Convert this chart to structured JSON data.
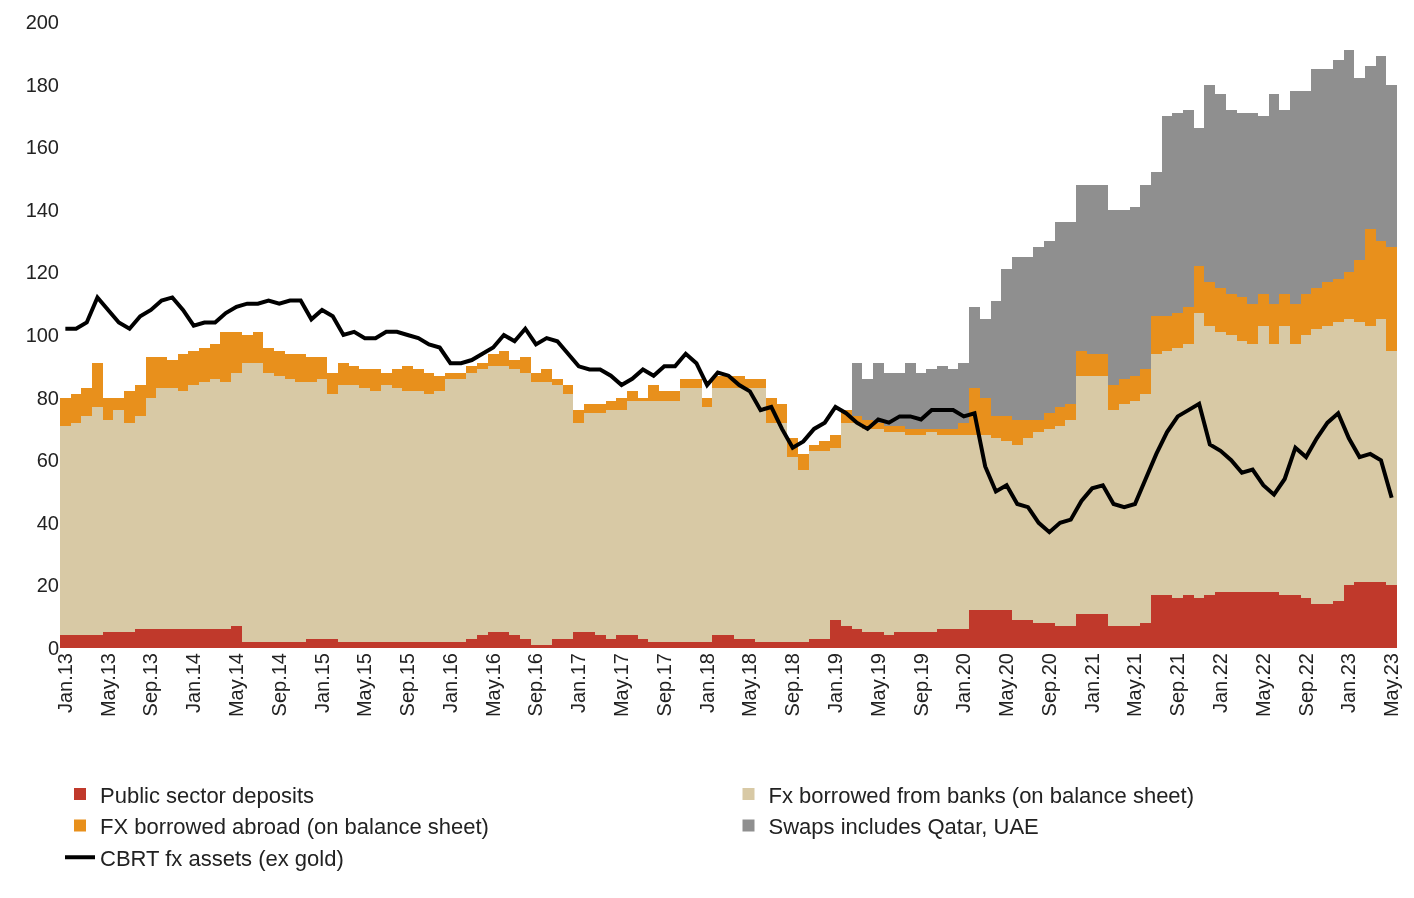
{
  "chart_data": {
    "type": "bar",
    "stacked": true,
    "grid": false,
    "legend": "bottom",
    "ylim": [
      0,
      200
    ],
    "yticks": [
      0,
      20,
      40,
      60,
      80,
      100,
      120,
      140,
      160,
      180,
      200
    ],
    "categories": [
      "Jan.13",
      null,
      null,
      null,
      "May.13",
      null,
      null,
      null,
      "Sep.13",
      null,
      null,
      null,
      "Jan.14",
      null,
      null,
      null,
      "May.14",
      null,
      null,
      null,
      "Sep.14",
      null,
      null,
      null,
      "Jan.15",
      null,
      null,
      null,
      "May.15",
      null,
      null,
      null,
      "Sep.15",
      null,
      null,
      null,
      "Jan.16",
      null,
      null,
      null,
      "May.16",
      null,
      null,
      null,
      "Sep.16",
      null,
      null,
      null,
      "Jan.17",
      null,
      null,
      null,
      "May.17",
      null,
      null,
      null,
      "Sep.17",
      null,
      null,
      null,
      "Jan.18",
      null,
      null,
      null,
      "May.18",
      null,
      null,
      null,
      "Sep.18",
      null,
      null,
      null,
      "Jan.19",
      null,
      null,
      null,
      "May.19",
      null,
      null,
      null,
      "Sep.19",
      null,
      null,
      null,
      "Jan.20",
      null,
      null,
      null,
      "May.20",
      null,
      null,
      null,
      "Sep.20",
      null,
      null,
      null,
      "Jan.21",
      null,
      null,
      null,
      "May.21",
      null,
      null,
      null,
      "Sep.21",
      null,
      null,
      null,
      "Jan.22",
      null,
      null,
      null,
      "May.22",
      null,
      null,
      null,
      "Sep.22",
      null,
      null,
      null,
      "Jan.23",
      null,
      null,
      null,
      "May.23"
    ],
    "series": [
      {
        "name": "Public sector deposits",
        "color": "#c0392b",
        "values": [
          4,
          4,
          4,
          4,
          5,
          5,
          5,
          6,
          6,
          6,
          6,
          6,
          6,
          6,
          6,
          6,
          7,
          2,
          2,
          2,
          2,
          2,
          2,
          3,
          3,
          3,
          2,
          2,
          2,
          2,
          2,
          2,
          2,
          2,
          2,
          2,
          2,
          2,
          3,
          4,
          5,
          5,
          4,
          3,
          1,
          1,
          3,
          3,
          5,
          5,
          4,
          3,
          4,
          4,
          3,
          2,
          2,
          2,
          2,
          2,
          2,
          4,
          4,
          3,
          3,
          2,
          2,
          2,
          2,
          2,
          3,
          3,
          9,
          7,
          6,
          5,
          5,
          4,
          5,
          5,
          5,
          5,
          6,
          6,
          6,
          12,
          12,
          12,
          12,
          9,
          9,
          8,
          8,
          7,
          7,
          11,
          11,
          11,
          7,
          7,
          7,
          8,
          17,
          17,
          16,
          17,
          16,
          17,
          18,
          18,
          18,
          18,
          18,
          18,
          17,
          17,
          16,
          14,
          14,
          15,
          20,
          21,
          21,
          21,
          20
        ]
      },
      {
        "name": "Fx borrowed from banks (on balance sheet)",
        "color": "#d8c9a5",
        "values": [
          67,
          68,
          70,
          73,
          68,
          71,
          67,
          68,
          74,
          77,
          77,
          76,
          78,
          79,
          80,
          79,
          81,
          89,
          89,
          86,
          85,
          84,
          83,
          82,
          83,
          78,
          82,
          82,
          81,
          80,
          82,
          81,
          80,
          80,
          79,
          80,
          84,
          84,
          85,
          85,
          85,
          85,
          85,
          85,
          84,
          84,
          81,
          78,
          67,
          70,
          71,
          73,
          72,
          75,
          76,
          77,
          77,
          77,
          81,
          81,
          75,
          79,
          79,
          80,
          80,
          81,
          70,
          70,
          59,
          55,
          60,
          60,
          55,
          65,
          66,
          65,
          65,
          65,
          64,
          63,
          63,
          64,
          62,
          62,
          62,
          56,
          56,
          55,
          54,
          56,
          58,
          61,
          62,
          64,
          66,
          76,
          76,
          76,
          69,
          71,
          72,
          73,
          77,
          78,
          80,
          80,
          91,
          86,
          83,
          82,
          80,
          79,
          85,
          79,
          86,
          80,
          84,
          88,
          89,
          89,
          85,
          83,
          82,
          84,
          75
        ]
      },
      {
        "name": "FX borrowed abroad (on balance sheet)",
        "color": "#e8901c",
        "values": [
          9,
          9,
          9,
          14,
          7,
          4,
          10,
          10,
          13,
          10,
          9,
          12,
          11,
          11,
          11,
          16,
          13,
          9,
          10,
          8,
          8,
          8,
          9,
          8,
          7,
          7,
          7,
          6,
          6,
          7,
          4,
          6,
          8,
          7,
          7,
          5,
          2,
          2,
          2,
          2,
          4,
          5,
          3,
          5,
          3,
          4,
          2,
          3,
          4,
          3,
          3,
          3,
          4,
          3,
          1,
          5,
          3,
          3,
          3,
          3,
          3,
          4,
          4,
          4,
          3,
          3,
          8,
          6,
          6,
          5,
          2,
          3,
          4,
          4,
          2,
          3,
          2,
          2,
          2,
          2,
          2,
          1,
          2,
          2,
          4,
          15,
          12,
          7,
          8,
          8,
          6,
          4,
          5,
          6,
          5,
          8,
          7,
          7,
          8,
          8,
          8,
          8,
          12,
          11,
          11,
          12,
          15,
          14,
          14,
          13,
          14,
          13,
          10,
          13,
          10,
          13,
          13,
          13,
          14,
          14,
          15,
          20,
          31,
          25,
          33
        ]
      },
      {
        "name": "Swaps includes Qatar, UAE",
        "color": "#8f8f8f",
        "values": [
          null,
          null,
          null,
          null,
          null,
          null,
          null,
          null,
          null,
          null,
          null,
          null,
          null,
          null,
          null,
          null,
          null,
          null,
          null,
          null,
          null,
          null,
          null,
          null,
          null,
          null,
          null,
          null,
          null,
          null,
          null,
          null,
          null,
          null,
          null,
          null,
          null,
          null,
          null,
          null,
          null,
          null,
          null,
          null,
          null,
          null,
          null,
          null,
          null,
          null,
          null,
          null,
          null,
          null,
          null,
          null,
          null,
          null,
          null,
          null,
          null,
          null,
          null,
          null,
          null,
          null,
          null,
          null,
          null,
          null,
          null,
          null,
          null,
          null,
          17,
          13,
          19,
          17,
          17,
          21,
          18,
          19,
          20,
          19,
          19,
          26,
          25,
          37,
          47,
          52,
          52,
          55,
          55,
          59,
          58,
          53,
          54,
          54,
          56,
          54,
          54,
          59,
          46,
          64,
          64,
          63,
          44,
          63,
          62,
          59,
          59,
          61,
          57,
          67,
          59,
          68,
          65,
          70,
          68,
          70,
          71,
          58,
          52,
          59,
          52
        ]
      },
      {
        "name": "CBRT fx assets (ex gold)",
        "type": "line",
        "color": "#000000",
        "values": [
          102,
          102,
          104,
          112,
          108,
          104,
          102,
          106,
          108,
          111,
          112,
          108,
          103,
          104,
          104,
          107,
          109,
          110,
          110,
          111,
          110,
          111,
          111,
          105,
          108,
          106,
          100,
          101,
          99,
          99,
          101,
          101,
          100,
          99,
          97,
          96,
          91,
          91,
          92,
          94,
          96,
          100,
          98,
          102,
          97,
          99,
          98,
          94,
          90,
          89,
          89,
          87,
          84,
          86,
          89,
          87,
          90,
          90,
          94,
          91,
          84,
          88,
          87,
          84,
          82,
          76,
          77,
          70,
          64,
          66,
          70,
          72,
          77,
          75,
          72,
          70,
          73,
          72,
          74,
          74,
          73,
          76,
          76,
          76,
          74,
          75,
          58,
          50,
          52,
          46,
          45,
          40,
          37,
          40,
          41,
          47,
          51,
          52,
          46,
          45,
          46,
          54,
          62,
          69,
          74,
          76,
          78,
          65,
          63,
          60,
          56,
          57,
          52,
          49,
          54,
          64,
          61,
          67,
          72,
          75,
          67,
          61,
          62,
          60,
          48
        ]
      }
    ]
  }
}
